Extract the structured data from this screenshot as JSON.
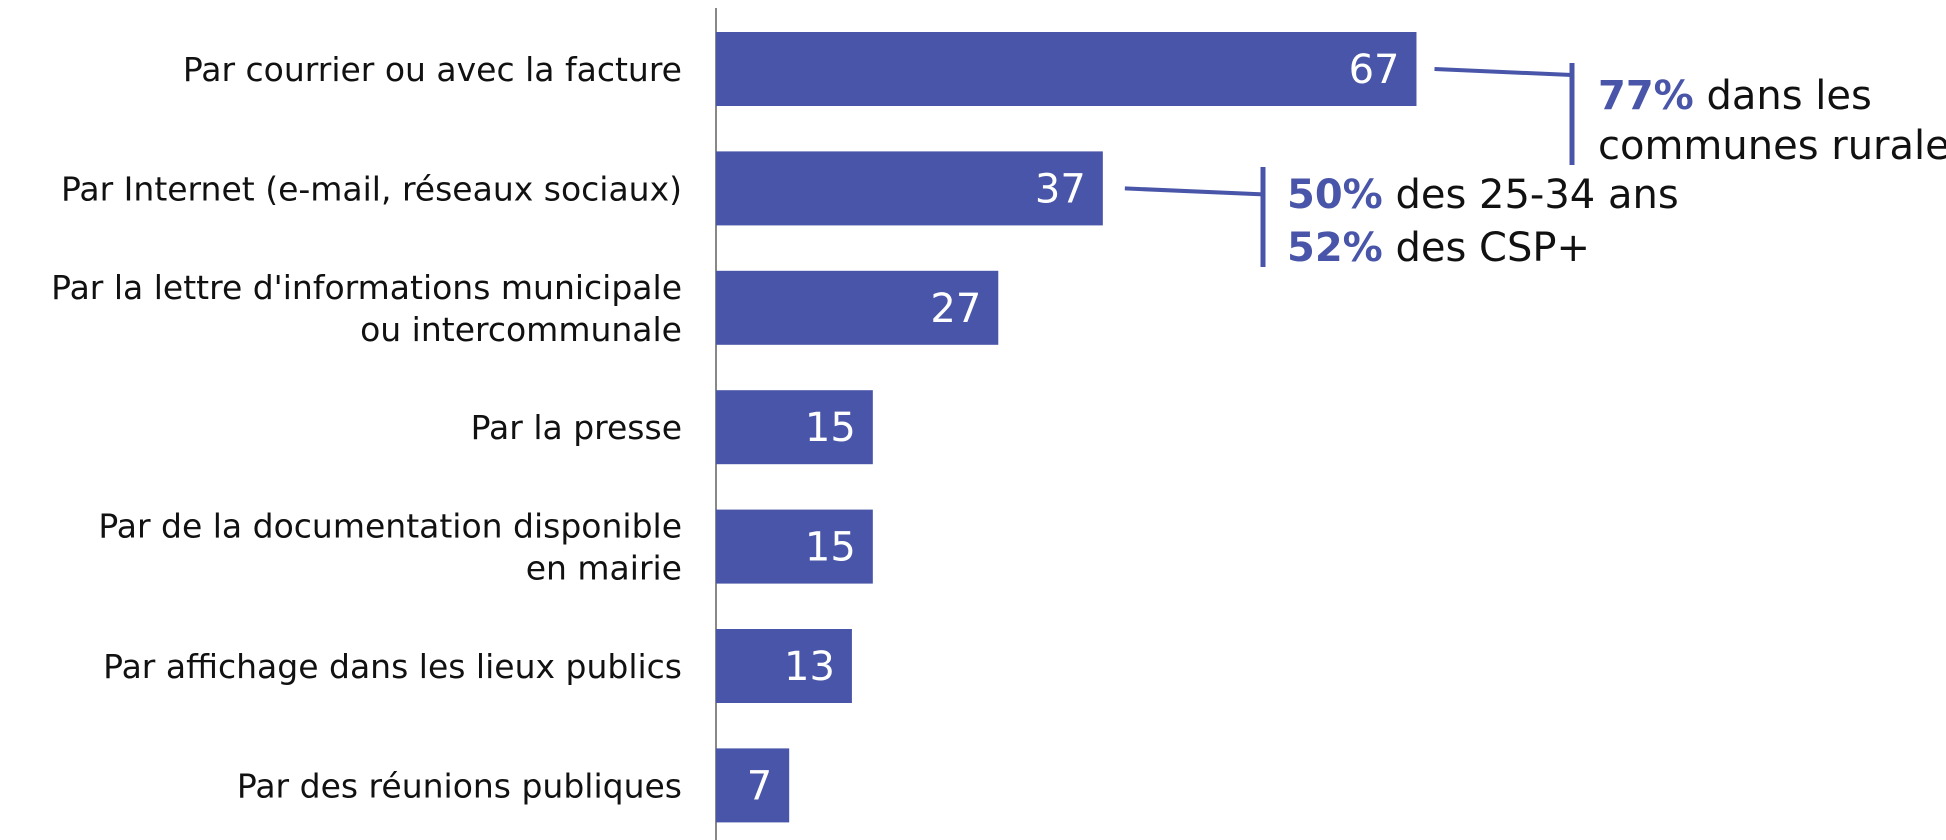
{
  "chart_data": {
    "type": "bar",
    "orientation": "horizontal",
    "categories": [
      [
        "Par courrier ou avec la facture"
      ],
      [
        "Par Internet (e-mail, réseaux sociaux)"
      ],
      [
        "Par la lettre d'informations municipale",
        "ou intercommunale"
      ],
      [
        "Par la presse"
      ],
      [
        "Par de la documentation disponible",
        "en mairie"
      ],
      [
        "Par affichage dans les lieux publics"
      ],
      [
        "Par des réunions publiques"
      ]
    ],
    "values": [
      67,
      37,
      27,
      15,
      15,
      13,
      7
    ],
    "xlim": [
      0,
      100
    ],
    "grid": false,
    "data_labels": [
      "67",
      "37",
      "27",
      "15",
      "15",
      "13",
      "7"
    ],
    "bar_color": "#4855A8",
    "annotations": [
      {
        "target_index": 0,
        "lines": [
          {
            "bold": "77%",
            "rest": " dans les"
          },
          {
            "bold": "",
            "rest": "communes rurales"
          }
        ]
      },
      {
        "target_index": 1,
        "lines": [
          {
            "bold": "50%",
            "rest": " des 25-34 ans"
          },
          {
            "bold": "52%",
            "rest": " des CSP+"
          }
        ]
      }
    ]
  }
}
